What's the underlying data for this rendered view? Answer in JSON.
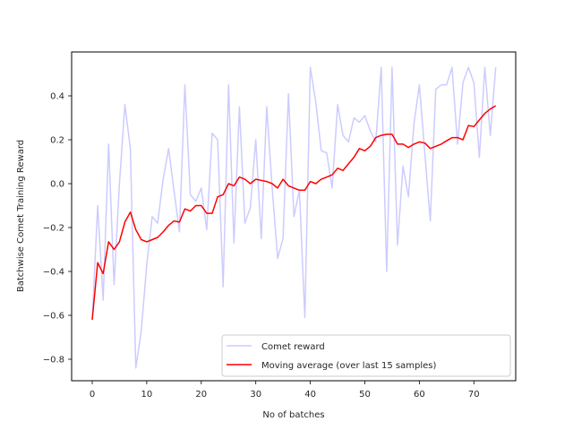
{
  "chart_data": {
    "type": "line",
    "title": "",
    "xlabel": "No of batches",
    "ylabel": "Batchwise Comet Training Reward",
    "xlim": [
      -3.7,
      77.7
    ],
    "ylim": [
      -0.9,
      0.6
    ],
    "xticks": [
      0,
      10,
      20,
      30,
      40,
      50,
      60,
      70
    ],
    "yticks": [
      -0.8,
      -0.6,
      -0.4,
      -0.2,
      0.0,
      0.2,
      0.4
    ],
    "xtick_labels": [
      "0",
      "10",
      "20",
      "30",
      "40",
      "50",
      "60",
      "70"
    ],
    "ytick_labels": [
      "−0.8",
      "−0.6",
      "−0.4",
      "−0.2",
      "0.0",
      "0.2",
      "0.4"
    ],
    "grid": false,
    "legend_position": "lower right",
    "series": [
      {
        "name": "Comet reward",
        "color": "#ccccff",
        "x": [
          0,
          1,
          2,
          3,
          4,
          5,
          6,
          7,
          8,
          9,
          10,
          11,
          12,
          13,
          14,
          15,
          16,
          17,
          18,
          19,
          20,
          21,
          22,
          23,
          24,
          25,
          26,
          27,
          28,
          29,
          30,
          31,
          32,
          33,
          34,
          35,
          36,
          37,
          38,
          39,
          40,
          41,
          42,
          43,
          44,
          45,
          46,
          47,
          48,
          49,
          50,
          51,
          52,
          53,
          54,
          55,
          56,
          57,
          58,
          59,
          60,
          61,
          62,
          63,
          64,
          65,
          66,
          67,
          68,
          69,
          70,
          71,
          72,
          73,
          74
        ],
        "values": [
          -0.62,
          -0.1,
          -0.53,
          0.18,
          -0.46,
          0.0,
          0.36,
          0.16,
          -0.84,
          -0.67,
          -0.37,
          -0.15,
          -0.18,
          0.02,
          0.16,
          -0.03,
          -0.22,
          0.45,
          -0.05,
          -0.08,
          -0.02,
          -0.21,
          0.23,
          0.2,
          -0.47,
          0.45,
          -0.27,
          0.35,
          -0.18,
          -0.11,
          0.2,
          -0.25,
          0.35,
          -0.02,
          -0.34,
          -0.25,
          0.41,
          -0.15,
          -0.03,
          -0.61,
          0.53,
          0.37,
          0.15,
          0.14,
          -0.02,
          0.36,
          0.22,
          0.19,
          0.3,
          0.28,
          0.31,
          0.24,
          0.19,
          0.53,
          -0.4,
          0.53,
          -0.28,
          0.08,
          -0.06,
          0.27,
          0.45,
          0.14,
          -0.17,
          0.43,
          0.45,
          0.45,
          0.53,
          0.18,
          0.46,
          0.53,
          0.46,
          0.12,
          0.53,
          0.22,
          0.53
        ]
      },
      {
        "name": "Moving average (over last 15 samples)",
        "color": "#ff0000",
        "x": [
          0,
          1,
          2,
          3,
          4,
          5,
          6,
          7,
          8,
          9,
          10,
          11,
          12,
          13,
          14,
          15,
          16,
          17,
          18,
          19,
          20,
          21,
          22,
          23,
          24,
          25,
          26,
          27,
          28,
          29,
          30,
          31,
          32,
          33,
          34,
          35,
          36,
          37,
          38,
          39,
          40,
          41,
          42,
          43,
          44,
          45,
          46,
          47,
          48,
          49,
          50,
          51,
          52,
          53,
          54,
          55,
          56,
          57,
          58,
          59,
          60,
          61,
          62,
          63,
          64,
          65,
          66,
          67,
          68,
          69,
          70,
          71,
          72,
          73,
          74
        ],
        "values": [
          -0.62,
          -0.36,
          -0.41,
          -0.265,
          -0.3,
          -0.265,
          -0.175,
          -0.13,
          -0.21,
          -0.255,
          -0.265,
          -0.255,
          -0.245,
          -0.22,
          -0.19,
          -0.17,
          -0.175,
          -0.115,
          -0.125,
          -0.1,
          -0.1,
          -0.135,
          -0.135,
          -0.06,
          -0.05,
          0.0,
          -0.01,
          0.03,
          0.02,
          0.0,
          0.02,
          0.015,
          0.01,
          0.0,
          -0.02,
          0.02,
          -0.01,
          -0.02,
          -0.03,
          -0.03,
          0.01,
          0.0,
          0.02,
          0.03,
          0.04,
          0.07,
          0.06,
          0.09,
          0.12,
          0.16,
          0.15,
          0.17,
          0.21,
          0.22,
          0.225,
          0.225,
          0.18,
          0.18,
          0.165,
          0.18,
          0.19,
          0.185,
          0.16,
          0.17,
          0.18,
          0.195,
          0.21,
          0.21,
          0.2,
          0.265,
          0.26,
          0.29,
          0.32,
          0.34,
          0.355
        ]
      }
    ]
  }
}
